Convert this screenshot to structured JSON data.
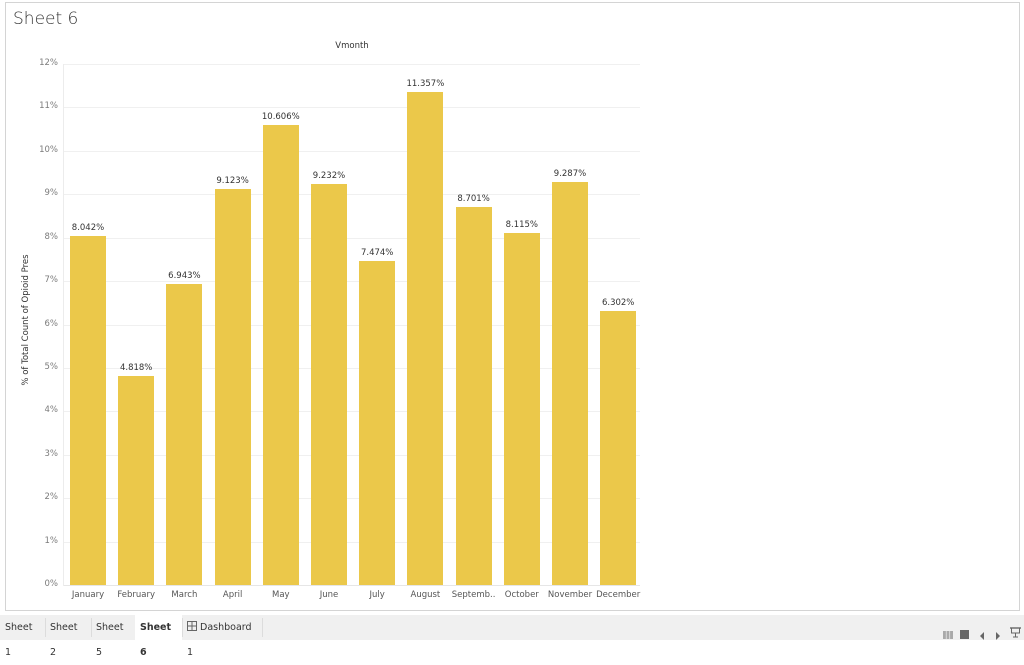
{
  "sheet": {
    "title": "Sheet 6"
  },
  "chart_data": {
    "type": "bar",
    "title": "Sheet 6",
    "column_header": "Vmonth",
    "xlabel": "",
    "ylabel": "% of Total Count of Opioid Pres",
    "categories": [
      "January",
      "February",
      "March",
      "April",
      "May",
      "June",
      "July",
      "August",
      "September",
      "October",
      "November",
      "December"
    ],
    "category_labels": [
      "January",
      "February",
      "March",
      "April",
      "May",
      "June",
      "July",
      "August",
      "Septemb..",
      "October",
      "November",
      "December"
    ],
    "values": [
      8.042,
      4.818,
      6.943,
      9.123,
      10.606,
      9.232,
      7.474,
      11.357,
      8.701,
      8.115,
      9.287,
      6.302
    ],
    "value_labels": [
      "8.042%",
      "4.818%",
      "6.943%",
      "9.123%",
      "10.606%",
      "9.232%",
      "7.474%",
      "11.357%",
      "8.701%",
      "8.115%",
      "9.287%",
      "6.302%"
    ],
    "ylim": [
      0,
      12
    ],
    "yticks": [
      "0%",
      "1%",
      "2%",
      "3%",
      "4%",
      "5%",
      "6%",
      "7%",
      "8%",
      "9%",
      "10%",
      "11%",
      "12%"
    ],
    "grid": true,
    "bar_color": "#ebc84a",
    "legend": null
  },
  "tabs": [
    {
      "label": "Sheet 1",
      "active": false
    },
    {
      "label": "Sheet 2",
      "active": false
    },
    {
      "label": "Sheet 5",
      "active": false
    },
    {
      "label": "Sheet 6",
      "active": true
    },
    {
      "label": "Dashboard 1",
      "active": false,
      "icon": "dashboard-grid-icon"
    }
  ],
  "controls": {
    "icons": [
      "filmstrip-view-icon",
      "tab-view-icon",
      "prev-arrow-icon",
      "next-arrow-icon",
      "presentation-mode-icon"
    ]
  }
}
